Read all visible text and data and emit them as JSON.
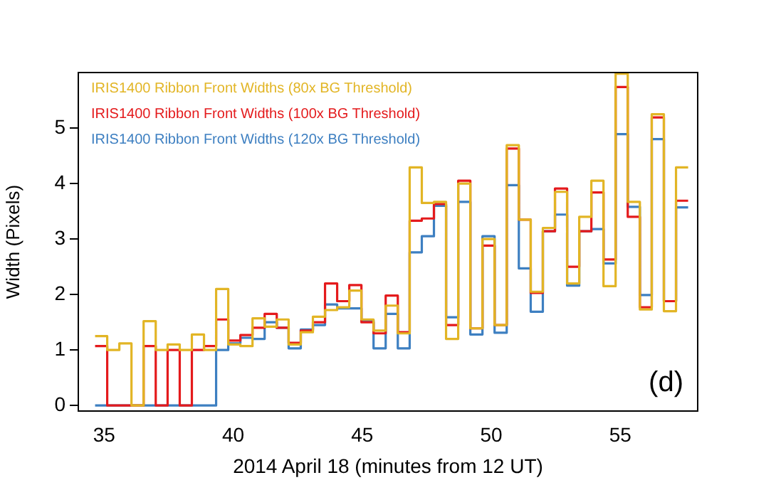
{
  "chart_data": {
    "type": "histogram",
    "xlabel": "2014 April 18 (minutes from 12 UT)",
    "ylabel": "Width (Pixels)",
    "bins": [
      34.65,
      35.12,
      35.59,
      36.06,
      36.53,
      37.0,
      37.46,
      37.93,
      38.4,
      38.87,
      39.34,
      39.81,
      40.28,
      40.75,
      41.22,
      41.69,
      42.15,
      42.62,
      43.09,
      43.56,
      44.03,
      44.5,
      44.97,
      45.44,
      45.91,
      46.38,
      46.84,
      47.31,
      47.78,
      48.25,
      48.72,
      49.19,
      49.66,
      50.13,
      50.6,
      51.07,
      51.53,
      52.0,
      52.47,
      52.94,
      53.41,
      53.88,
      54.35,
      54.82,
      55.29,
      55.76,
      56.22,
      56.69,
      57.16,
      57.63
    ],
    "series": [
      {
        "name": "IRIS1400 Ribbon Front Widths (80x BG Threshold)",
        "color": "#e2b525",
        "values": [
          1.25,
          1.0,
          1.12,
          0,
          1.52,
          1.0,
          1.1,
          1.0,
          1.28,
          1.0,
          2.1,
          1.1,
          1.07,
          1.57,
          1.42,
          1.55,
          1.1,
          1.32,
          1.6,
          1.72,
          1.77,
          2.07,
          1.55,
          1.35,
          1.8,
          1.3,
          4.29,
          3.65,
          3.67,
          1.2,
          4.0,
          1.39,
          3.0,
          1.45,
          4.69,
          3.35,
          2.05,
          3.2,
          3.85,
          2.2,
          3.4,
          4.05,
          2.15,
          5.98,
          3.67,
          1.73,
          5.25,
          1.7,
          4.29
        ]
      },
      {
        "name": "IRIS1400 Ribbon Front Widths (100x BG Threshold)",
        "color": "#e41a1c",
        "values": [
          1.07,
          0,
          0,
          0,
          1.07,
          0,
          1.0,
          0,
          1.0,
          1.07,
          1.55,
          1.17,
          1.27,
          1.4,
          1.65,
          1.4,
          1.13,
          1.35,
          1.5,
          2.2,
          1.88,
          2.17,
          1.5,
          1.3,
          1.98,
          1.32,
          3.33,
          3.37,
          3.63,
          1.45,
          4.05,
          1.39,
          2.88,
          1.45,
          4.63,
          3.35,
          2.03,
          3.14,
          3.91,
          2.5,
          3.14,
          3.84,
          2.63,
          5.74,
          3.4,
          1.77,
          5.19,
          1.88,
          3.69
        ]
      },
      {
        "name": "IRIS1400 Ribbon Front Widths (120x BG Threshold)",
        "color": "#3d7fc1",
        "values": [
          0,
          0,
          0,
          0,
          0,
          0,
          0,
          0,
          0,
          0,
          1.0,
          1.12,
          1.22,
          1.2,
          1.5,
          1.4,
          1.03,
          1.37,
          1.45,
          1.82,
          1.75,
          1.75,
          1.53,
          1.03,
          1.65,
          1.03,
          2.76,
          3.05,
          3.6,
          1.59,
          3.67,
          1.28,
          3.05,
          1.31,
          3.97,
          2.47,
          1.69,
          3.14,
          3.44,
          2.16,
          3.14,
          3.18,
          2.56,
          4.89,
          3.58,
          1.99,
          4.8,
          1.88,
          3.57
        ]
      }
    ],
    "xlim": [
      34,
      58
    ],
    "xticks": [
      35,
      40,
      45,
      50,
      55
    ],
    "ylim": [
      -0.1,
      6
    ],
    "yticks": [
      0,
      1,
      2,
      3,
      4,
      5
    ],
    "grid": false,
    "legend": "top left",
    "annotations": [
      "(d)"
    ]
  }
}
